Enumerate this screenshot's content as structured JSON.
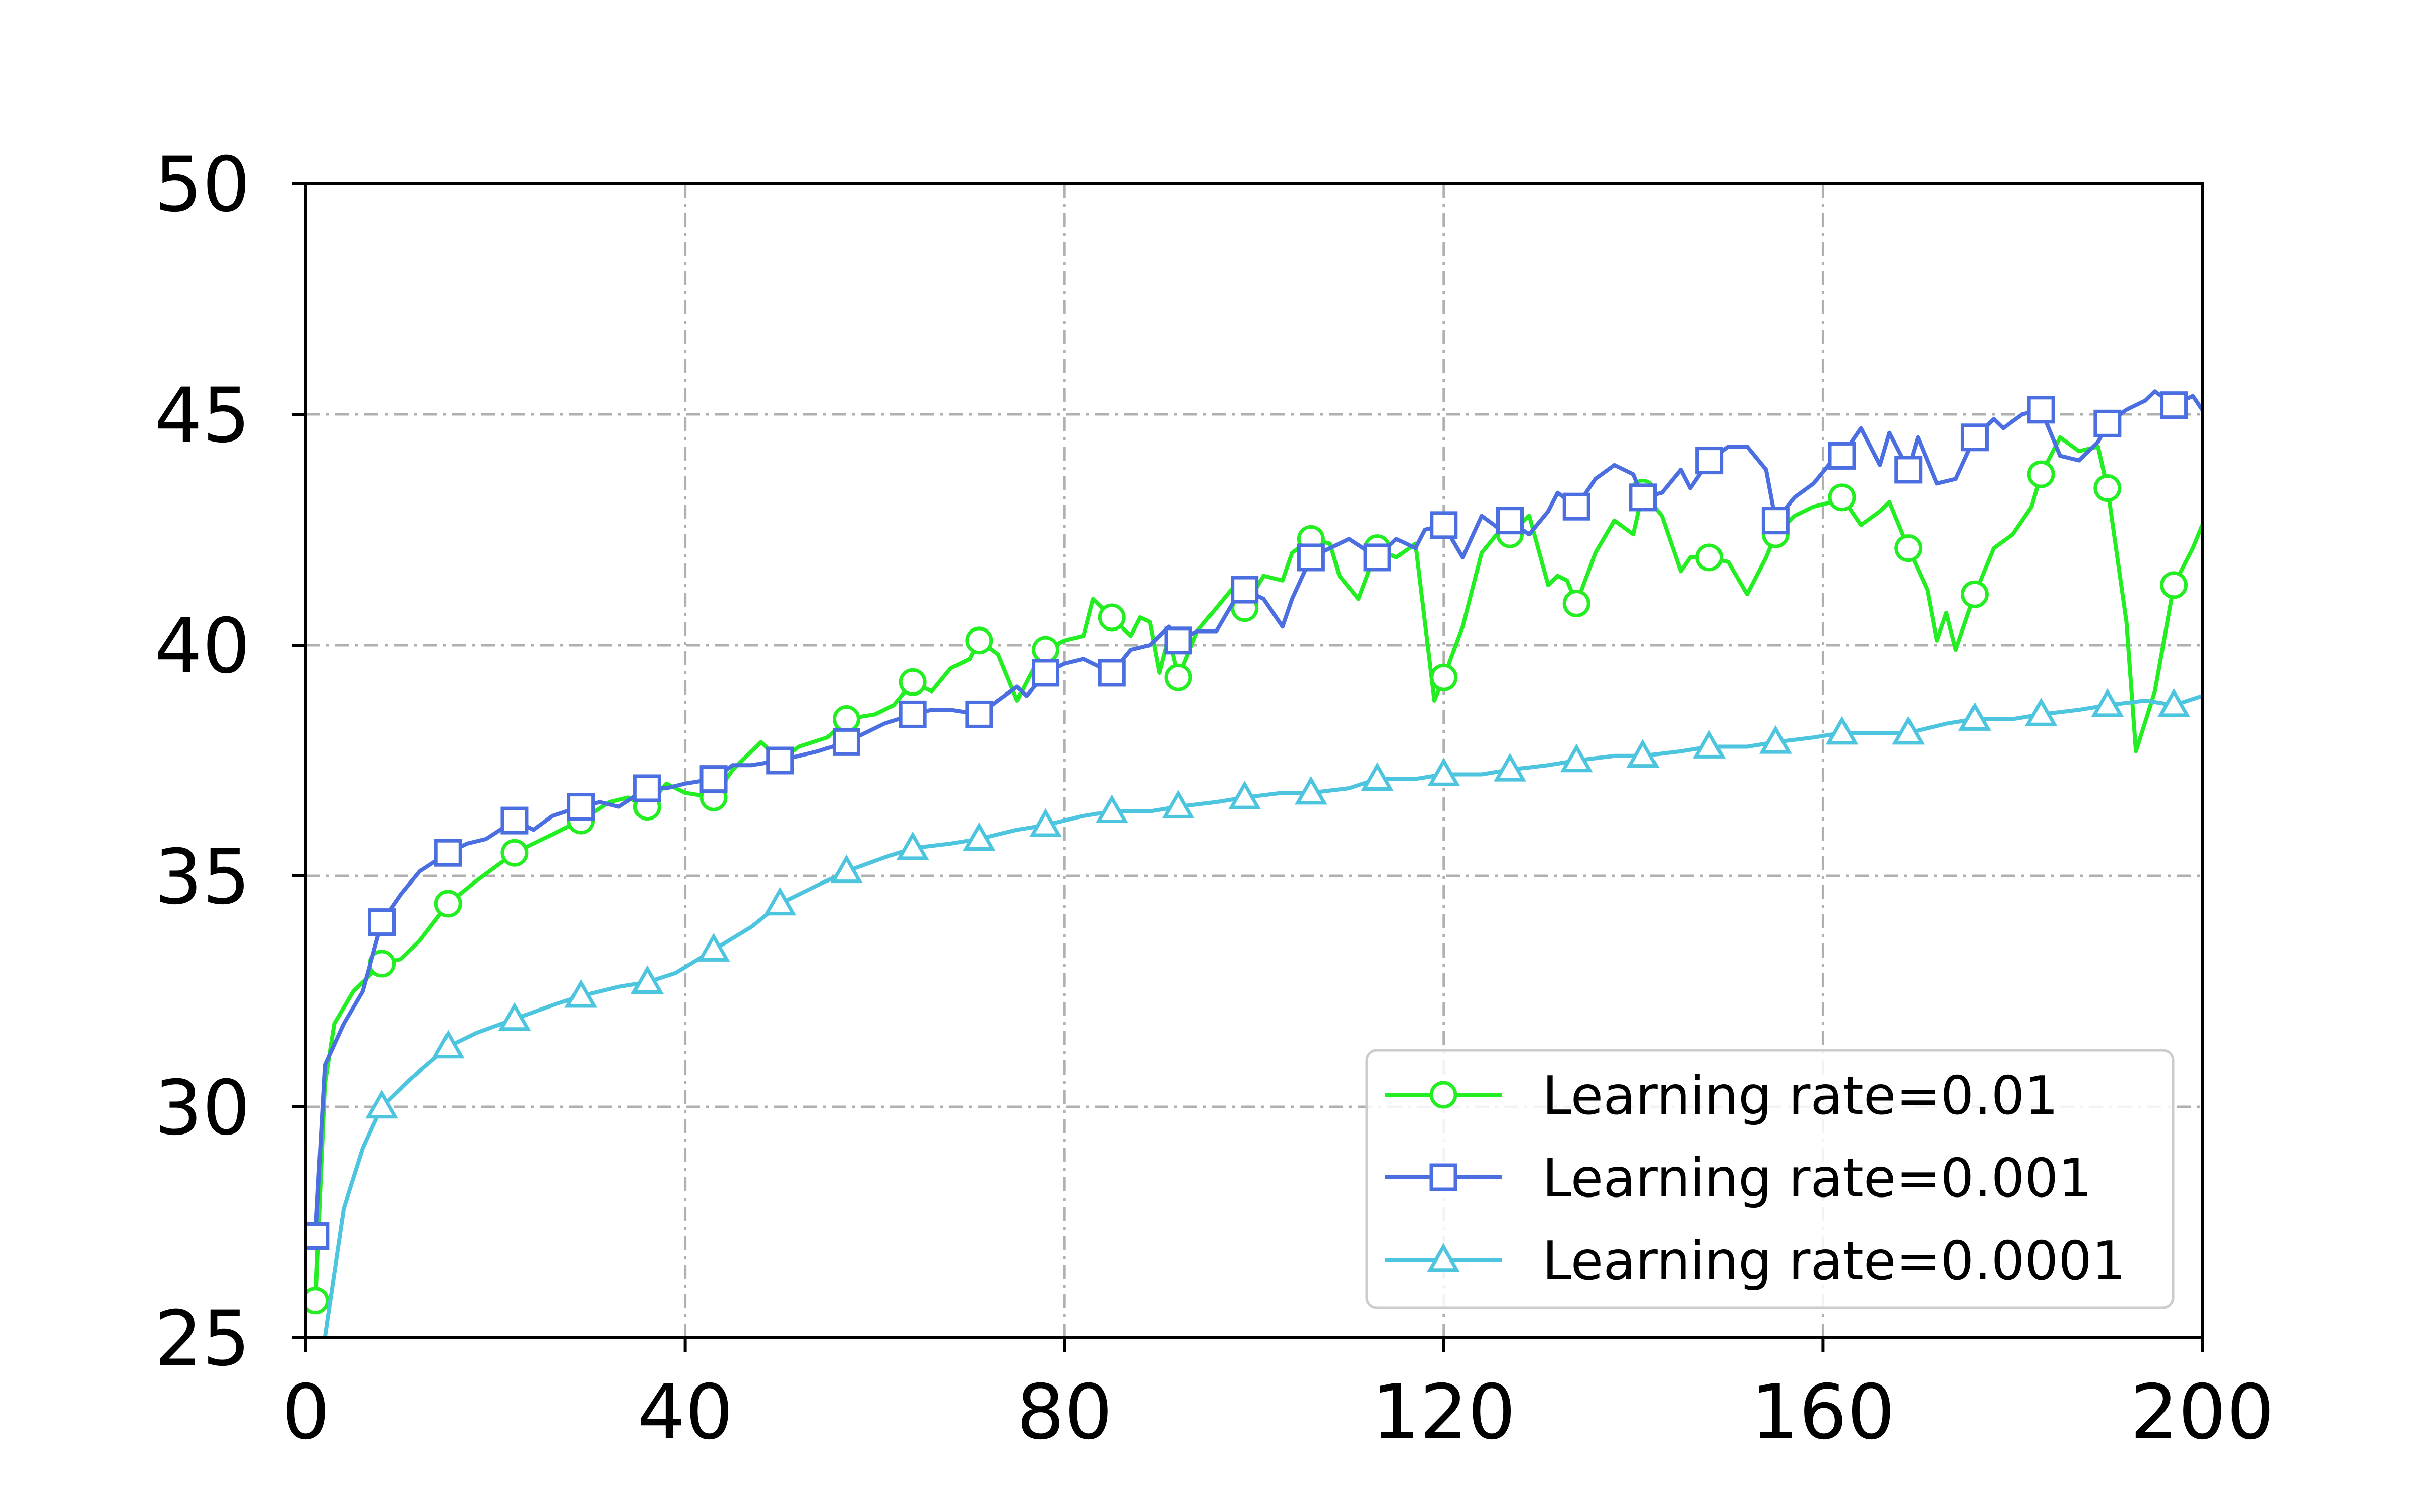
{
  "chart_data": {
    "type": "line",
    "title": "",
    "xlabel": "",
    "ylabel": "",
    "xlim": [
      0,
      200
    ],
    "ylim": [
      25,
      50
    ],
    "xticks": [
      0,
      40,
      80,
      120,
      160,
      200
    ],
    "yticks": [
      25,
      30,
      35,
      40,
      45,
      50
    ],
    "xtick_labels": [
      "0",
      "40",
      "80",
      "120",
      "160",
      "200"
    ],
    "ytick_labels": [
      "25",
      "30",
      "35",
      "40",
      "45",
      "50"
    ],
    "grid": true,
    "legend_position": "bottom-right",
    "series": [
      {
        "name": "Learning rate=0.01",
        "color": "#22ee22",
        "marker": "circle",
        "x": [
          1,
          2,
          3,
          5,
          8,
          10,
          12,
          15,
          18,
          20,
          22,
          25,
          27,
          29,
          32,
          34,
          36,
          38,
          40,
          43,
          45,
          48,
          50,
          52,
          55,
          57,
          60,
          62,
          64,
          66,
          68,
          70,
          71,
          73,
          75,
          77,
          78,
          80,
          82,
          83,
          85,
          87,
          88,
          89,
          90,
          91,
          92,
          94,
          96,
          98,
          99,
          101,
          103,
          104,
          106,
          108,
          109,
          111,
          113,
          115,
          117,
          119,
          120,
          122,
          124,
          126,
          127,
          129,
          131,
          132,
          133,
          134,
          136,
          138,
          140,
          141,
          143,
          145,
          146,
          148,
          150,
          152,
          154,
          155,
          157,
          159,
          161,
          162,
          164,
          166,
          167,
          169,
          171,
          172,
          173,
          174,
          176,
          178,
          180,
          182,
          183,
          185,
          187,
          189,
          190,
          192,
          193,
          195,
          197,
          199,
          200
        ],
        "y": [
          25.8,
          30.5,
          31.8,
          32.5,
          33.1,
          33.2,
          33.6,
          34.4,
          34.9,
          35.2,
          35.5,
          35.8,
          36.0,
          36.2,
          36.6,
          36.7,
          36.5,
          37.0,
          36.8,
          36.7,
          37.3,
          37.9,
          37.5,
          37.8,
          38.0,
          38.4,
          38.5,
          38.7,
          39.2,
          39.0,
          39.5,
          39.7,
          40.1,
          39.8,
          38.8,
          39.6,
          39.9,
          40.1,
          40.2,
          41.0,
          40.6,
          40.2,
          40.6,
          40.5,
          39.4,
          40.2,
          39.3,
          40.3,
          40.8,
          41.3,
          40.8,
          41.5,
          41.4,
          42.0,
          42.3,
          42.2,
          41.5,
          41.0,
          42.1,
          41.9,
          42.2,
          38.8,
          39.3,
          40.4,
          42.0,
          42.5,
          42.4,
          42.8,
          41.3,
          41.5,
          41.4,
          40.9,
          42.0,
          42.7,
          42.4,
          43.3,
          42.8,
          41.6,
          41.9,
          41.9,
          41.8,
          41.1,
          41.9,
          42.4,
          42.8,
          43.0,
          43.1,
          43.2,
          42.6,
          42.9,
          43.1,
          42.1,
          41.2,
          40.1,
          40.7,
          39.9,
          41.1,
          42.1,
          42.4,
          43.0,
          43.7,
          44.5,
          44.2,
          44.3,
          43.4,
          40.5,
          37.7,
          39.0,
          41.3,
          42.1,
          42.6
        ],
        "markers_x": [
          1,
          8,
          15,
          22,
          29,
          36,
          43,
          50,
          57,
          64,
          71,
          78,
          85,
          92,
          99,
          106,
          113,
          120,
          127,
          134,
          141,
          148,
          155,
          162,
          169,
          176,
          183,
          190,
          197
        ]
      },
      {
        "name": "Learning rate=0.001",
        "color": "#4b6ee0",
        "marker": "square",
        "x": [
          1,
          2,
          4,
          6,
          8,
          10,
          12,
          15,
          17,
          19,
          22,
          24,
          26,
          29,
          31,
          33,
          36,
          38,
          40,
          43,
          45,
          47,
          50,
          52,
          54,
          57,
          59,
          61,
          64,
          66,
          68,
          71,
          73,
          75,
          76,
          78,
          80,
          82,
          85,
          87,
          89,
          91,
          92,
          94,
          96,
          98,
          99,
          101,
          103,
          104,
          106,
          108,
          110,
          113,
          115,
          117,
          118,
          120,
          122,
          124,
          126,
          127,
          129,
          131,
          132,
          134,
          136,
          138,
          140,
          141,
          143,
          145,
          146,
          148,
          150,
          152,
          154,
          155,
          157,
          159,
          161,
          162,
          164,
          166,
          167,
          169,
          170,
          172,
          174,
          176,
          178,
          179,
          181,
          183,
          185,
          187,
          189,
          190,
          192,
          194,
          195,
          197,
          199,
          200
        ],
        "y": [
          27.2,
          30.9,
          31.8,
          32.5,
          34.0,
          34.6,
          35.1,
          35.5,
          35.7,
          35.8,
          36.2,
          36.0,
          36.3,
          36.5,
          36.6,
          36.5,
          36.9,
          36.9,
          37.0,
          37.1,
          37.4,
          37.4,
          37.5,
          37.6,
          37.7,
          37.9,
          38.1,
          38.3,
          38.5,
          38.6,
          38.6,
          38.5,
          38.8,
          39.1,
          38.9,
          39.4,
          39.6,
          39.7,
          39.4,
          39.9,
          40.0,
          40.4,
          40.1,
          40.3,
          40.3,
          41.0,
          41.2,
          41.0,
          40.4,
          41.0,
          41.9,
          42.1,
          42.3,
          41.9,
          42.3,
          42.1,
          42.5,
          42.6,
          41.9,
          42.8,
          42.5,
          42.7,
          42.4,
          42.9,
          43.3,
          43.0,
          43.6,
          43.9,
          43.7,
          43.2,
          43.3,
          43.8,
          43.4,
          44.0,
          44.3,
          44.3,
          43.8,
          42.7,
          43.2,
          43.5,
          44.0,
          44.1,
          44.7,
          43.9,
          44.6,
          43.8,
          44.5,
          43.5,
          43.6,
          44.5,
          44.9,
          44.7,
          45.0,
          45.1,
          44.1,
          44.0,
          44.4,
          44.8,
          45.1,
          45.3,
          45.5,
          45.2,
          45.4,
          45.1
        ],
        "markers_x": [
          1,
          8,
          15,
          22,
          29,
          36,
          43,
          50,
          57,
          64,
          71,
          78,
          85,
          92,
          99,
          106,
          113,
          120,
          127,
          134,
          141,
          148,
          155,
          162,
          169,
          176,
          183,
          190,
          197
        ]
      },
      {
        "name": "Learning rate=0.0001",
        "color": "#4ec5de",
        "marker": "triangle",
        "x": [
          1,
          2,
          4,
          6,
          8,
          11,
          15,
          18,
          22,
          26,
          29,
          33,
          36,
          39,
          43,
          47,
          50,
          54,
          57,
          61,
          64,
          68,
          71,
          75,
          78,
          82,
          85,
          89,
          92,
          96,
          99,
          103,
          106,
          110,
          113,
          117,
          120,
          124,
          127,
          131,
          134,
          138,
          141,
          145,
          148,
          152,
          155,
          159,
          162,
          166,
          169,
          173,
          176,
          180,
          183,
          187,
          190,
          194,
          197,
          200
        ],
        "y": [
          23.6,
          25.0,
          27.8,
          29.1,
          30.0,
          30.6,
          31.3,
          31.6,
          31.9,
          32.2,
          32.4,
          32.6,
          32.7,
          32.9,
          33.4,
          33.9,
          34.4,
          34.8,
          35.1,
          35.4,
          35.6,
          35.7,
          35.8,
          36.0,
          36.1,
          36.3,
          36.4,
          36.4,
          36.5,
          36.6,
          36.7,
          36.8,
          36.8,
          36.9,
          37.1,
          37.1,
          37.2,
          37.2,
          37.3,
          37.4,
          37.5,
          37.6,
          37.6,
          37.7,
          37.8,
          37.8,
          37.9,
          38.0,
          38.1,
          38.1,
          38.1,
          38.3,
          38.4,
          38.4,
          38.5,
          38.6,
          38.7,
          38.8,
          38.7,
          38.9
        ],
        "markers_x": [
          1,
          8,
          15,
          22,
          29,
          36,
          43,
          50,
          57,
          64,
          71,
          78,
          85,
          92,
          99,
          106,
          113,
          120,
          127,
          134,
          141,
          148,
          155,
          162,
          169,
          176,
          183,
          190,
          197
        ]
      }
    ]
  }
}
